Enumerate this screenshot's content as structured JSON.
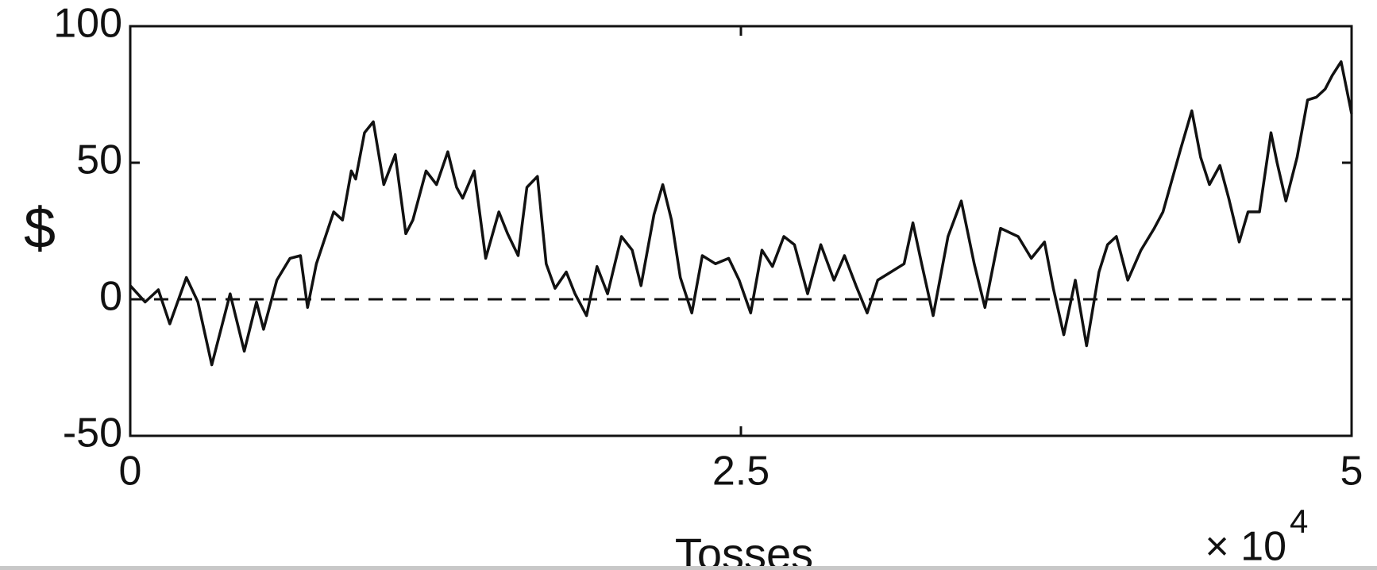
{
  "chart_data": {
    "type": "line",
    "x_label": "Tosses",
    "y_label": "$",
    "x_multiplier": {
      "base": "× 10",
      "exponent": "4"
    },
    "color": "#111111",
    "hline": 0,
    "xlim": [
      0,
      5
    ],
    "xticks": [
      0,
      2.5,
      5
    ],
    "ylim": [
      -50,
      100
    ],
    "yticks": [
      -50,
      0,
      50,
      100
    ],
    "x": [
      0,
      0.061,
      0.115,
      0.162,
      0.23,
      0.277,
      0.334,
      0.409,
      0.467,
      0.517,
      0.546,
      0.6,
      0.654,
      0.697,
      0.726,
      0.762,
      0.833,
      0.869,
      0.905,
      0.923,
      0.959,
      0.995,
      1.038,
      1.085,
      1.128,
      1.157,
      1.211,
      1.254,
      1.3,
      1.336,
      1.361,
      1.408,
      1.455,
      1.509,
      1.545,
      1.588,
      1.624,
      1.667,
      1.703,
      1.739,
      1.785,
      1.821,
      1.868,
      1.911,
      1.954,
      2.011,
      2.055,
      2.091,
      2.144,
      2.18,
      2.216,
      2.252,
      2.299,
      2.342,
      2.396,
      2.45,
      2.493,
      2.54,
      2.586,
      2.629,
      2.676,
      2.719,
      2.773,
      2.827,
      2.881,
      2.924,
      2.971,
      3.017,
      3.06,
      3.114,
      3.168,
      3.204,
      3.24,
      3.287,
      3.348,
      3.402,
      3.455,
      3.499,
      3.563,
      3.635,
      3.689,
      3.743,
      3.779,
      3.822,
      3.869,
      3.915,
      3.966,
      4.001,
      4.037,
      4.084,
      4.138,
      4.192,
      4.228,
      4.3,
      4.346,
      4.382,
      4.418,
      4.461,
      4.497,
      4.54,
      4.576,
      4.623,
      4.67,
      4.695,
      4.731,
      4.777,
      4.82,
      4.856,
      4.892,
      4.921,
      4.957,
      5.0
    ],
    "values": [
      5,
      -1,
      3.5,
      -9,
      8,
      -1,
      -24,
      2,
      -19,
      -1,
      -11,
      7,
      15,
      16,
      -3,
      13,
      32,
      29,
      47,
      44,
      61,
      65,
      42,
      53,
      24,
      29,
      47,
      42,
      54,
      41,
      37,
      47,
      15,
      32,
      24,
      16,
      41,
      45,
      13,
      4,
      10,
      2,
      -6,
      12,
      2,
      23,
      18,
      5,
      31,
      42,
      29,
      8,
      -5,
      16,
      13,
      15,
      7,
      -5,
      18,
      12,
      23,
      20,
      2,
      20,
      7,
      16,
      5,
      -5,
      7,
      10,
      13,
      28,
      13,
      -6,
      23,
      36,
      13,
      -3,
      26,
      23,
      15,
      21,
      4,
      -13,
      7,
      -17,
      10,
      20,
      23,
      7,
      18,
      26,
      32,
      55,
      69,
      52,
      42,
      49,
      37,
      21,
      32,
      32,
      61,
      50,
      36,
      52,
      73,
      74,
      77,
      82,
      87,
      68
    ]
  }
}
